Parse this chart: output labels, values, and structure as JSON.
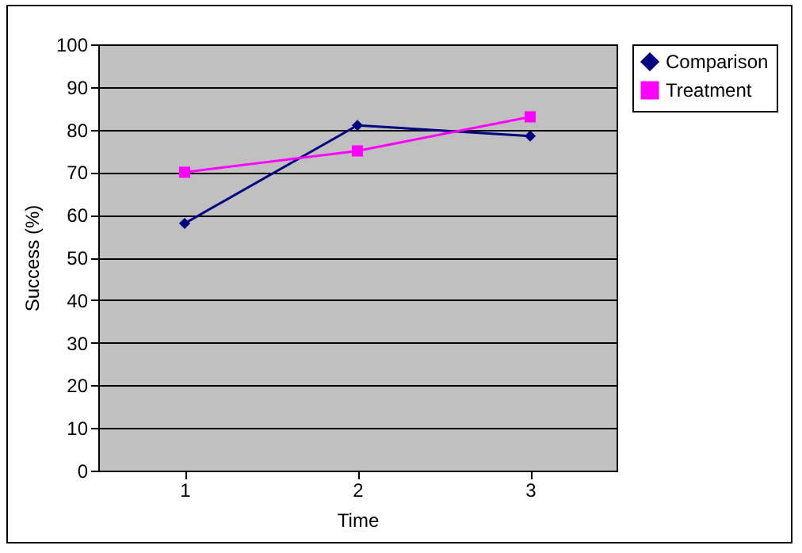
{
  "chart_data": {
    "type": "line",
    "xlabel": "Time",
    "ylabel": "Success (%)",
    "categories": [
      "1",
      "2",
      "3"
    ],
    "series": [
      {
        "name": "Comparison",
        "color": "#000080",
        "marker": "diamond",
        "values": [
          58,
          81,
          78.5
        ]
      },
      {
        "name": "Treatment",
        "color": "#ff00ff",
        "marker": "square",
        "values": [
          70,
          75,
          83
        ]
      }
    ],
    "ylim": [
      0,
      100
    ],
    "yticks": [
      0,
      10,
      20,
      30,
      40,
      50,
      60,
      70,
      80,
      90,
      100
    ],
    "grid": "y",
    "legend": "right"
  }
}
